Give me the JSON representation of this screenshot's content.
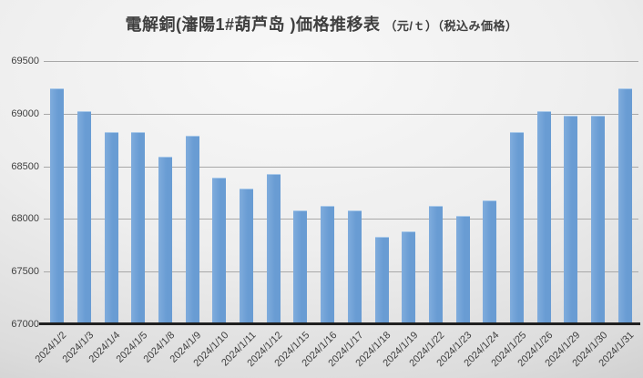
{
  "title": {
    "main": "電解銅(瀋陽1#葫芦岛 )価格推移表",
    "suffix": "（元/ｔ）（税込み価格）"
  },
  "colors": {
    "bar_light": "#7FACDD",
    "bar_dark": "#699CD3",
    "grid": "#a8a8a8",
    "axis": "#202020",
    "text": "#3f3f3f"
  },
  "chart_data": {
    "type": "bar",
    "title": "電解銅(瀋陽1#葫芦岛 )価格推移表（元/ｔ）（税込み価格）",
    "categories": [
      "2024/1/2",
      "2024/1/3",
      "2024/1/4",
      "2024/1/5",
      "2024/1/8",
      "2024/1/9",
      "2024/1/10",
      "2024/1/11",
      "2024/1/12",
      "2024/1/15",
      "2024/1/16",
      "2024/1/17",
      "2024/1/18",
      "2024/1/19",
      "2024/1/22",
      "2024/1/23",
      "2024/1/24",
      "2024/1/25",
      "2024/1/26",
      "2024/1/29",
      "2024/1/30",
      "2024/1/31"
    ],
    "values": [
      69230,
      69020,
      68820,
      68820,
      68580,
      68780,
      68380,
      68280,
      68420,
      68070,
      68120,
      68070,
      67820,
      67870,
      68120,
      68020,
      68170,
      68820,
      69020,
      68970,
      68970,
      69230
    ],
    "xlabel": "",
    "ylabel": "",
    "ylim": [
      67000,
      69500
    ],
    "yticks": [
      67000,
      67500,
      68000,
      68500,
      69000,
      69500
    ],
    "grid": true,
    "legend": false,
    "bar_color": "#6FA0D6"
  }
}
